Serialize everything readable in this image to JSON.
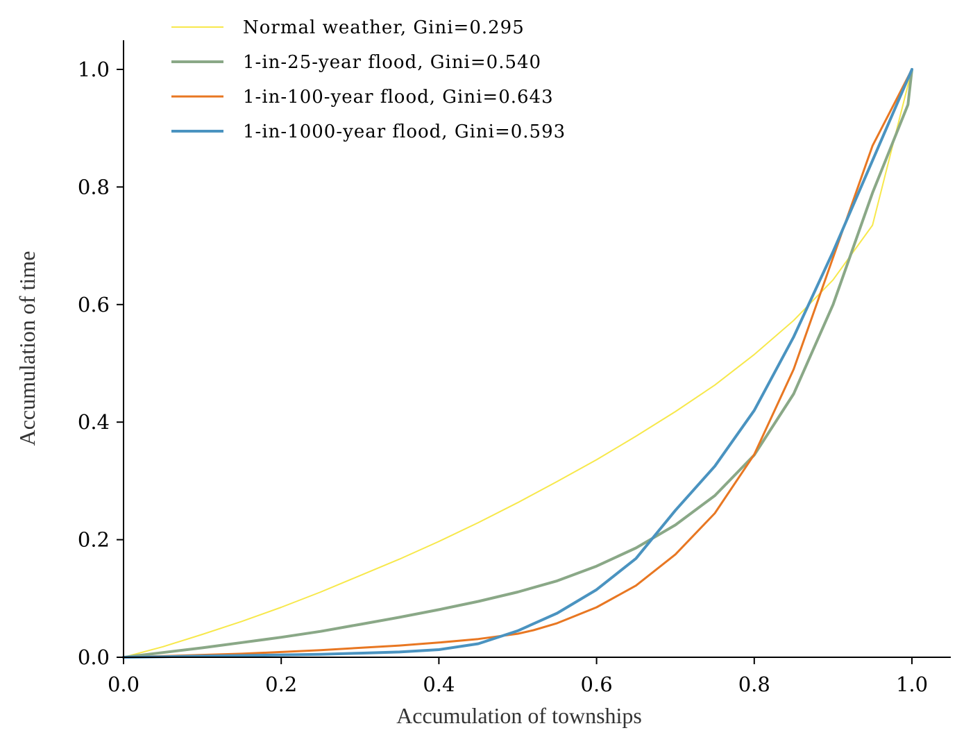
{
  "chart_data": {
    "type": "line",
    "title": "",
    "xlabel": "Accumulation of townships",
    "ylabel": "Accumulation of time",
    "xlim": [
      0,
      1.05
    ],
    "ylim": [
      0,
      1.05
    ],
    "xticks": [
      "0.0",
      "0.2",
      "0.4",
      "0.6",
      "0.8",
      "1.0"
    ],
    "yticks": [
      "0.0",
      "0.2",
      "0.4",
      "0.6",
      "0.8",
      "1.0"
    ],
    "grid": false,
    "legend_position": "top-left",
    "series": [
      {
        "name": "Normal weather, Gini=0.295",
        "color": "#f7e84b",
        "x": [
          0,
          0.05,
          0.1,
          0.15,
          0.2,
          0.25,
          0.3,
          0.35,
          0.4,
          0.45,
          0.5,
          0.55,
          0.6,
          0.65,
          0.7,
          0.75,
          0.8,
          0.85,
          0.9,
          0.95,
          1.0
        ],
        "y": [
          0,
          0.018,
          0.039,
          0.061,
          0.085,
          0.111,
          0.139,
          0.167,
          0.197,
          0.229,
          0.263,
          0.299,
          0.336,
          0.376,
          0.418,
          0.463,
          0.515,
          0.573,
          0.642,
          0.735,
          1.0
        ]
      },
      {
        "name": "1-in-25-year flood, Gini=0.540",
        "color": "#8aa887",
        "x": [
          0,
          0.05,
          0.1,
          0.15,
          0.2,
          0.25,
          0.3,
          0.35,
          0.4,
          0.45,
          0.5,
          0.55,
          0.6,
          0.65,
          0.7,
          0.75,
          0.8,
          0.85,
          0.9,
          0.95,
          0.995,
          1.0
        ],
        "y": [
          0,
          0.008,
          0.016,
          0.025,
          0.034,
          0.044,
          0.056,
          0.068,
          0.081,
          0.095,
          0.111,
          0.13,
          0.155,
          0.186,
          0.225,
          0.275,
          0.344,
          0.448,
          0.6,
          0.79,
          0.94,
          1.0
        ]
      },
      {
        "name": "1-in-100-year flood, Gini=0.643",
        "color": "#e87722",
        "x": [
          0,
          0.05,
          0.1,
          0.15,
          0.2,
          0.25,
          0.3,
          0.35,
          0.4,
          0.45,
          0.5,
          0.52,
          0.55,
          0.6,
          0.65,
          0.7,
          0.75,
          0.8,
          0.85,
          0.9,
          0.95,
          1.0
        ],
        "y": [
          0,
          0.002,
          0.004,
          0.006,
          0.009,
          0.012,
          0.016,
          0.02,
          0.025,
          0.031,
          0.04,
          0.046,
          0.058,
          0.085,
          0.122,
          0.175,
          0.245,
          0.345,
          0.49,
          0.68,
          0.87,
          1.0
        ]
      },
      {
        "name": "1-in-1000-year flood, Gini=0.593",
        "color": "#4a93c0",
        "x": [
          0,
          0.05,
          0.1,
          0.15,
          0.2,
          0.25,
          0.3,
          0.35,
          0.4,
          0.45,
          0.5,
          0.55,
          0.6,
          0.65,
          0.7,
          0.75,
          0.8,
          0.85,
          0.9,
          0.95,
          1.0
        ],
        "y": [
          0,
          0.001,
          0.002,
          0.003,
          0.004,
          0.005,
          0.007,
          0.009,
          0.013,
          0.023,
          0.045,
          0.075,
          0.115,
          0.168,
          0.25,
          0.325,
          0.42,
          0.545,
          0.69,
          0.845,
          1.0
        ]
      }
    ]
  }
}
